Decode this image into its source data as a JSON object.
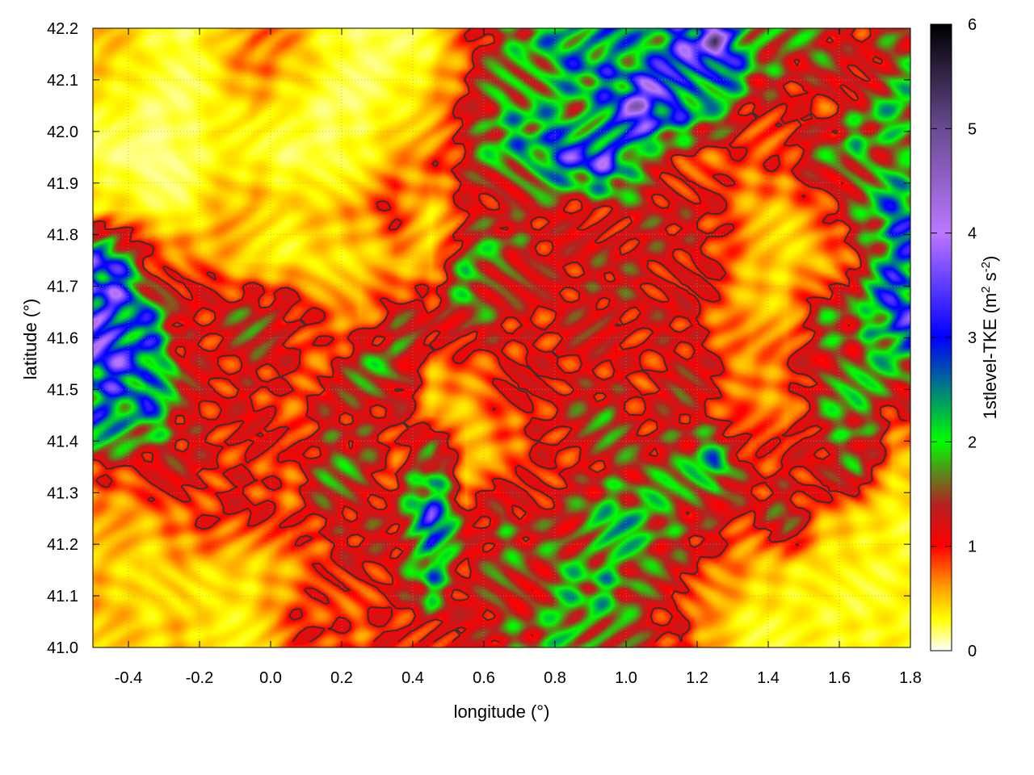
{
  "chart_data": {
    "type": "heatmap",
    "title": "",
    "xlabel": "longitude (°)",
    "ylabel": "latitude (°)",
    "colorbar_label": {
      "base": "1stlevel-TKE (m",
      "sup1": "2",
      "mid": " s",
      "sup2": "-2",
      "end": ")"
    },
    "xlim": [
      -0.5,
      1.8
    ],
    "ylim": [
      41.0,
      42.2
    ],
    "clim": [
      0,
      6
    ],
    "x_ticks": [
      "-0.4",
      "-0.2",
      "0.0",
      "0.2",
      "0.4",
      "0.6",
      "0.8",
      "1.0",
      "1.2",
      "1.4",
      "1.6",
      "1.8"
    ],
    "y_ticks": [
      "41.0",
      "41.1",
      "41.2",
      "41.3",
      "41.4",
      "41.5",
      "41.6",
      "41.7",
      "41.8",
      "41.9",
      "42.0",
      "42.1",
      "42.2"
    ],
    "colorbar_ticks": [
      "0",
      "1",
      "2",
      "3",
      "4",
      "5",
      "6"
    ],
    "grid": true,
    "colormap": [
      {
        "v": 0,
        "c": "#ffffff"
      },
      {
        "v": 0.3,
        "c": "#ffff00"
      },
      {
        "v": 0.6,
        "c": "#ffa000"
      },
      {
        "v": 1.0,
        "c": "#ff0000"
      },
      {
        "v": 1.4,
        "c": "#b52222"
      },
      {
        "v": 1.7,
        "c": "#5a8a1a"
      },
      {
        "v": 2.0,
        "c": "#00ff00"
      },
      {
        "v": 2.5,
        "c": "#008080"
      },
      {
        "v": 3.0,
        "c": "#0000ff"
      },
      {
        "v": 4.0,
        "c": "#bb77ff"
      },
      {
        "v": 5.0,
        "c": "#6a4c93"
      },
      {
        "v": 6.0,
        "c": "#000000"
      }
    ],
    "grid_lon_centers": [
      -0.45,
      -0.35,
      -0.25,
      -0.15,
      -0.05,
      0.05,
      0.15,
      0.25,
      0.35,
      0.45,
      0.55,
      0.65,
      0.75,
      0.85,
      0.95,
      1.05,
      1.15,
      1.25,
      1.35,
      1.45,
      1.55,
      1.65,
      1.75
    ],
    "grid_lat_centers": [
      42.15,
      42.05,
      41.95,
      41.85,
      41.75,
      41.65,
      41.55,
      41.45,
      41.35,
      41.25,
      41.15,
      41.05
    ],
    "values": [
      [
        0.5,
        0.3,
        0.2,
        0.4,
        0.8,
        0.6,
        0.3,
        0.2,
        0.2,
        0.3,
        0.8,
        1.5,
        2,
        2.5,
        2.5,
        2,
        3,
        4,
        2,
        1.5,
        1.5,
        1,
        1.5
      ],
      [
        0.3,
        0.2,
        0.2,
        0.3,
        0.5,
        0.3,
        0.2,
        0.2,
        0.3,
        0.5,
        1,
        2,
        2,
        1.8,
        2.5,
        4,
        3,
        2,
        1.2,
        1,
        0.8,
        1.5,
        2
      ],
      [
        0.2,
        0.1,
        0.2,
        0.3,
        0.3,
        0.2,
        0.2,
        0.3,
        0.5,
        0.8,
        1.2,
        2,
        2.5,
        3,
        3.5,
        1.5,
        1,
        0.8,
        0.8,
        1,
        1.5,
        2,
        1.5
      ],
      [
        0.4,
        0.3,
        0.2,
        0.5,
        0.6,
        0.4,
        0.5,
        0.6,
        1,
        0.4,
        1,
        1.2,
        1.2,
        1,
        1.2,
        1.3,
        1.2,
        1,
        0.6,
        0.5,
        0.8,
        1.5,
        2.5
      ],
      [
        3,
        1,
        0.8,
        0.6,
        0.3,
        0.3,
        0.4,
        0.4,
        0.5,
        0.4,
        1.8,
        1.8,
        1.2,
        1.1,
        1.3,
        1.2,
        1.2,
        1,
        0.5,
        0.4,
        0.5,
        1,
        2.5
      ],
      [
        3.5,
        2.5,
        1,
        1.2,
        1.5,
        1.3,
        0.8,
        0.5,
        1.2,
        1.2,
        1.8,
        1.2,
        1,
        1.2,
        1.3,
        1.2,
        1.1,
        0.8,
        0.5,
        0.5,
        1.5,
        1.5,
        3
      ],
      [
        3,
        3,
        1.2,
        1,
        1.2,
        1,
        0.8,
        1.5,
        1.8,
        0.6,
        0.8,
        1,
        1,
        1.1,
        1,
        1,
        1.2,
        1,
        0.6,
        0.8,
        1.5,
        1.5,
        2
      ],
      [
        2.5,
        2.5,
        1.2,
        1.1,
        1,
        0.8,
        1.2,
        1.2,
        1.2,
        0.5,
        0.5,
        0.8,
        1,
        1.3,
        1.5,
        1,
        1.3,
        1,
        0.7,
        0.6,
        1.5,
        1.8,
        1
      ],
      [
        1,
        1,
        1.2,
        1,
        1,
        0.8,
        1.5,
        1.5,
        0.8,
        2,
        0.5,
        0.6,
        1,
        1,
        1.3,
        1.5,
        1.5,
        2.5,
        1,
        1,
        1.2,
        1.5,
        0.5
      ],
      [
        0.5,
        0.6,
        0.8,
        1,
        1,
        0.8,
        1.2,
        1.2,
        1.3,
        3,
        1,
        1.5,
        1.2,
        1.5,
        2,
        2,
        1.5,
        1.2,
        1,
        1.5,
        0.6,
        0.4,
        0.3
      ],
      [
        0.5,
        0.3,
        0.5,
        0.4,
        0.4,
        0.6,
        0.8,
        1.2,
        1,
        2.5,
        1,
        1.5,
        1.5,
        1.8,
        2,
        1.5,
        1.2,
        0.8,
        0.5,
        0.4,
        0.3,
        0.3,
        0.3
      ],
      [
        0.5,
        0.4,
        0.5,
        0.3,
        0.4,
        0.8,
        1,
        0.8,
        1,
        1.2,
        1,
        1.5,
        1.5,
        2,
        1.8,
        1.2,
        1,
        0.5,
        0.3,
        0.3,
        0.3,
        0.3,
        0.3
      ]
    ],
    "contour_level": 1.0
  }
}
